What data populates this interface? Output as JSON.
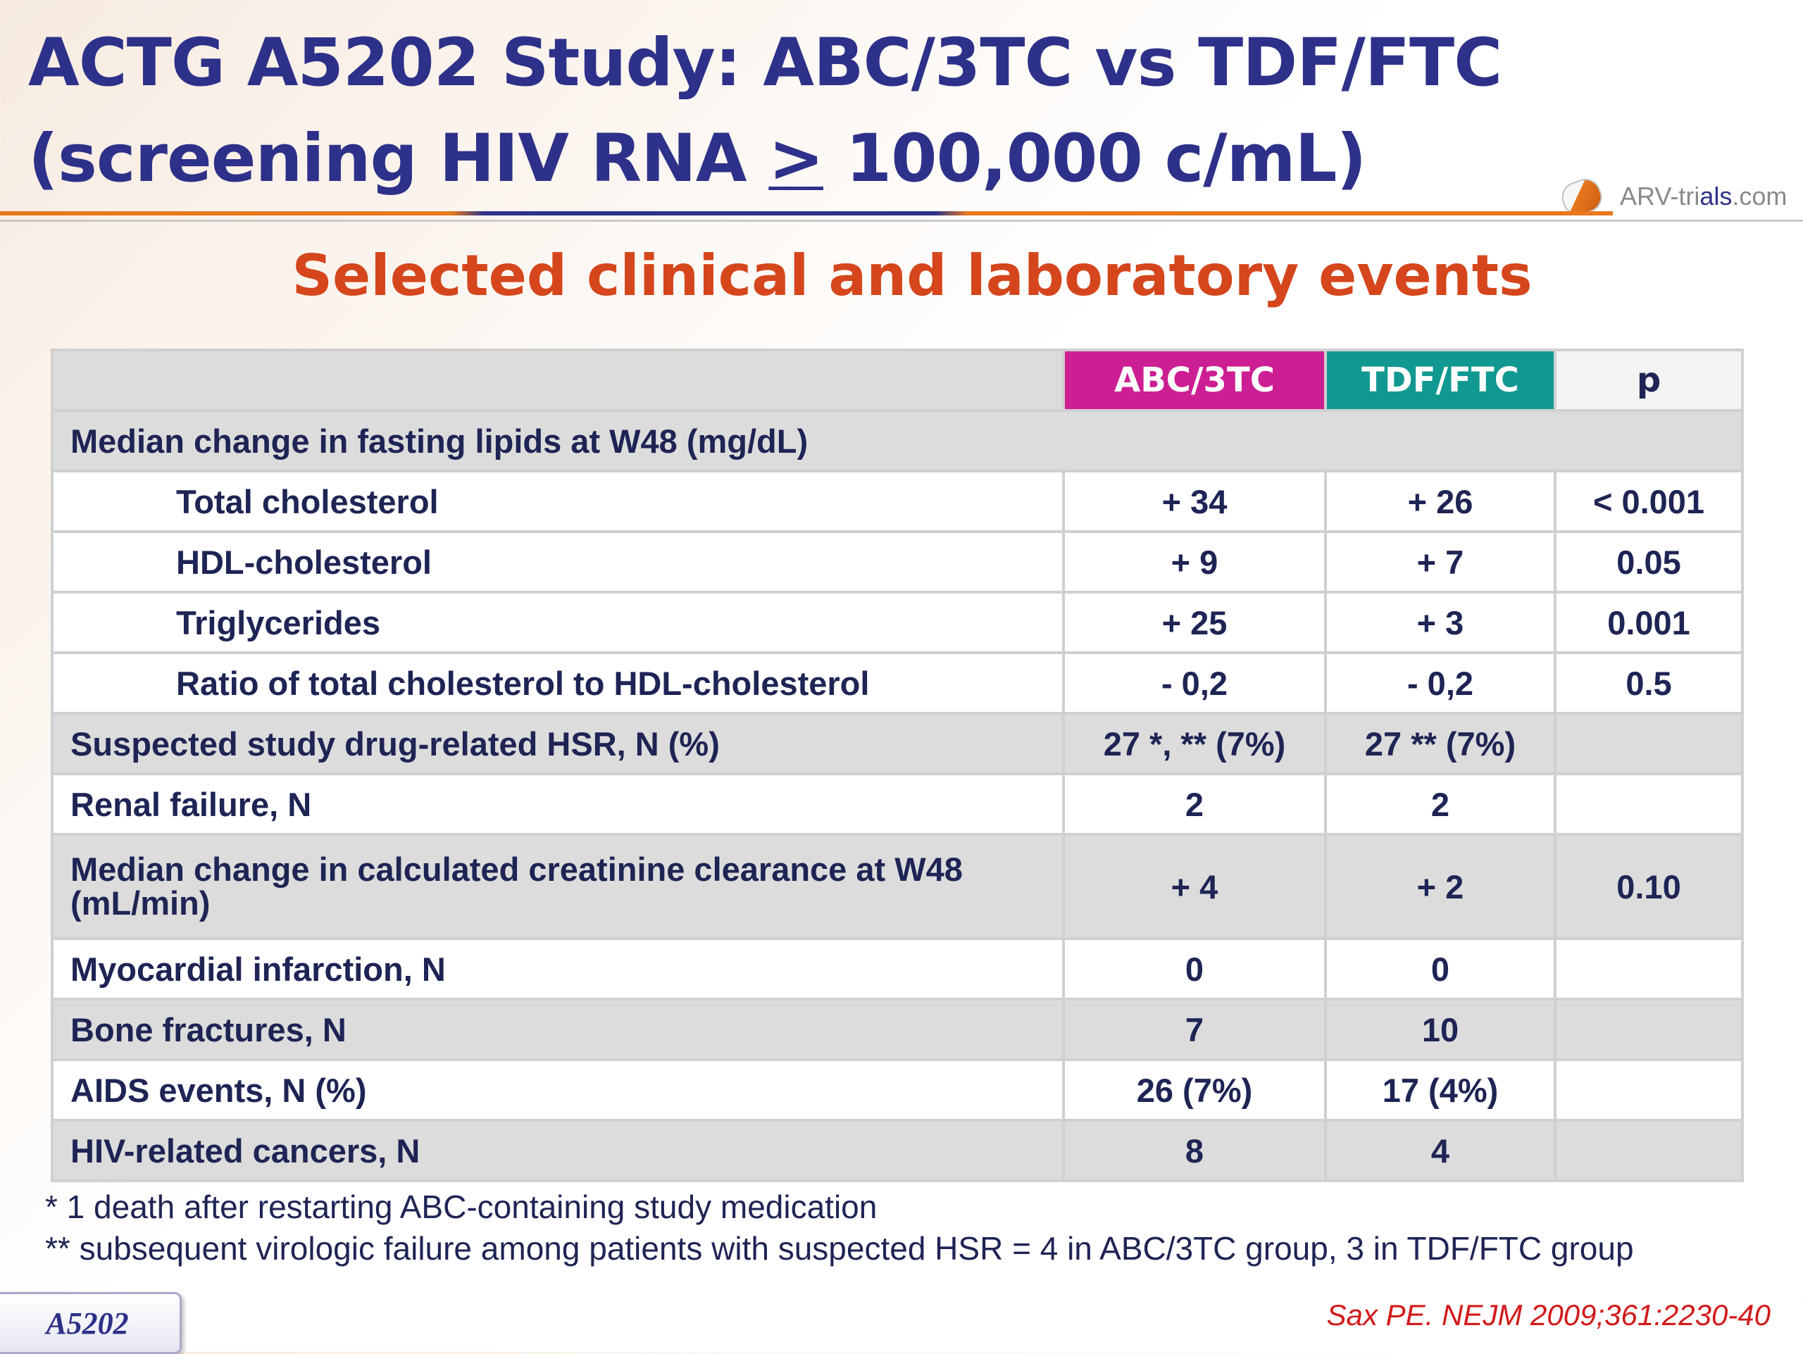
{
  "header": {
    "title_line1": "ACTG A5202 Study: ABC/3TC vs TDF/FTC",
    "title_line2_pre": "(screening HIV RNA ",
    "title_line2_sym": ">",
    "title_line2_post": " 100,000 c/mL)",
    "logo_text_a": "ARV-tri",
    "logo_text_b": "als",
    "logo_text_c": ".com"
  },
  "subtitle": "Selected clinical and laboratory events",
  "table": {
    "columns": [
      "ABC/3TC",
      "TDF/FTC",
      "p"
    ],
    "section_lipids": "Median change in fasting lipids at W48 (mg/dL)",
    "lipid_rows": [
      {
        "label": "Total cholesterol",
        "abc": "+ 34",
        "tdf": "+ 26",
        "p": "< 0.001"
      },
      {
        "label": "HDL-cholesterol",
        "abc": "+ 9",
        "tdf": "+ 7",
        "p": "0.05"
      },
      {
        "label": "Triglycerides",
        "abc": "+ 25",
        "tdf": "+ 3",
        "p": "0.001"
      },
      {
        "label": "Ratio of total cholesterol to HDL-cholesterol",
        "abc": "- 0,2",
        "tdf": "- 0,2",
        "p": "0.5"
      }
    ],
    "rows": [
      {
        "label": "Suspected study drug-related HSR, N (%)",
        "abc": "27 *, ** (7%)",
        "tdf": "27 ** (7%)",
        "p": ""
      },
      {
        "label": "Renal failure, N",
        "abc": "2",
        "tdf": "2",
        "p": ""
      },
      {
        "label": "Median change in calculated creatinine clearance at W48 (mL/min)",
        "abc": "+ 4",
        "tdf": "+ 2",
        "p": "0.10"
      },
      {
        "label": "Myocardial infarction, N",
        "abc": "0",
        "tdf": "0",
        "p": ""
      },
      {
        "label": "Bone fractures, N",
        "abc": "7",
        "tdf": "10",
        "p": ""
      },
      {
        "label": "AIDS events, N (%)",
        "abc": "26 (7%)",
        "tdf": "17 (4%)",
        "p": ""
      },
      {
        "label": "HIV-related cancers, N",
        "abc": "8",
        "tdf": "4",
        "p": ""
      }
    ]
  },
  "footnotes": [
    "* 1 death after restarting ABC-containing study medication",
    "** subsequent virologic failure among patients with suspected HSR = 4 in ABC/3TC group, 3 in TDF/FTC group"
  ],
  "badge": "A5202",
  "citation": "Sax PE. NEJM 2009;361:2230-40"
}
